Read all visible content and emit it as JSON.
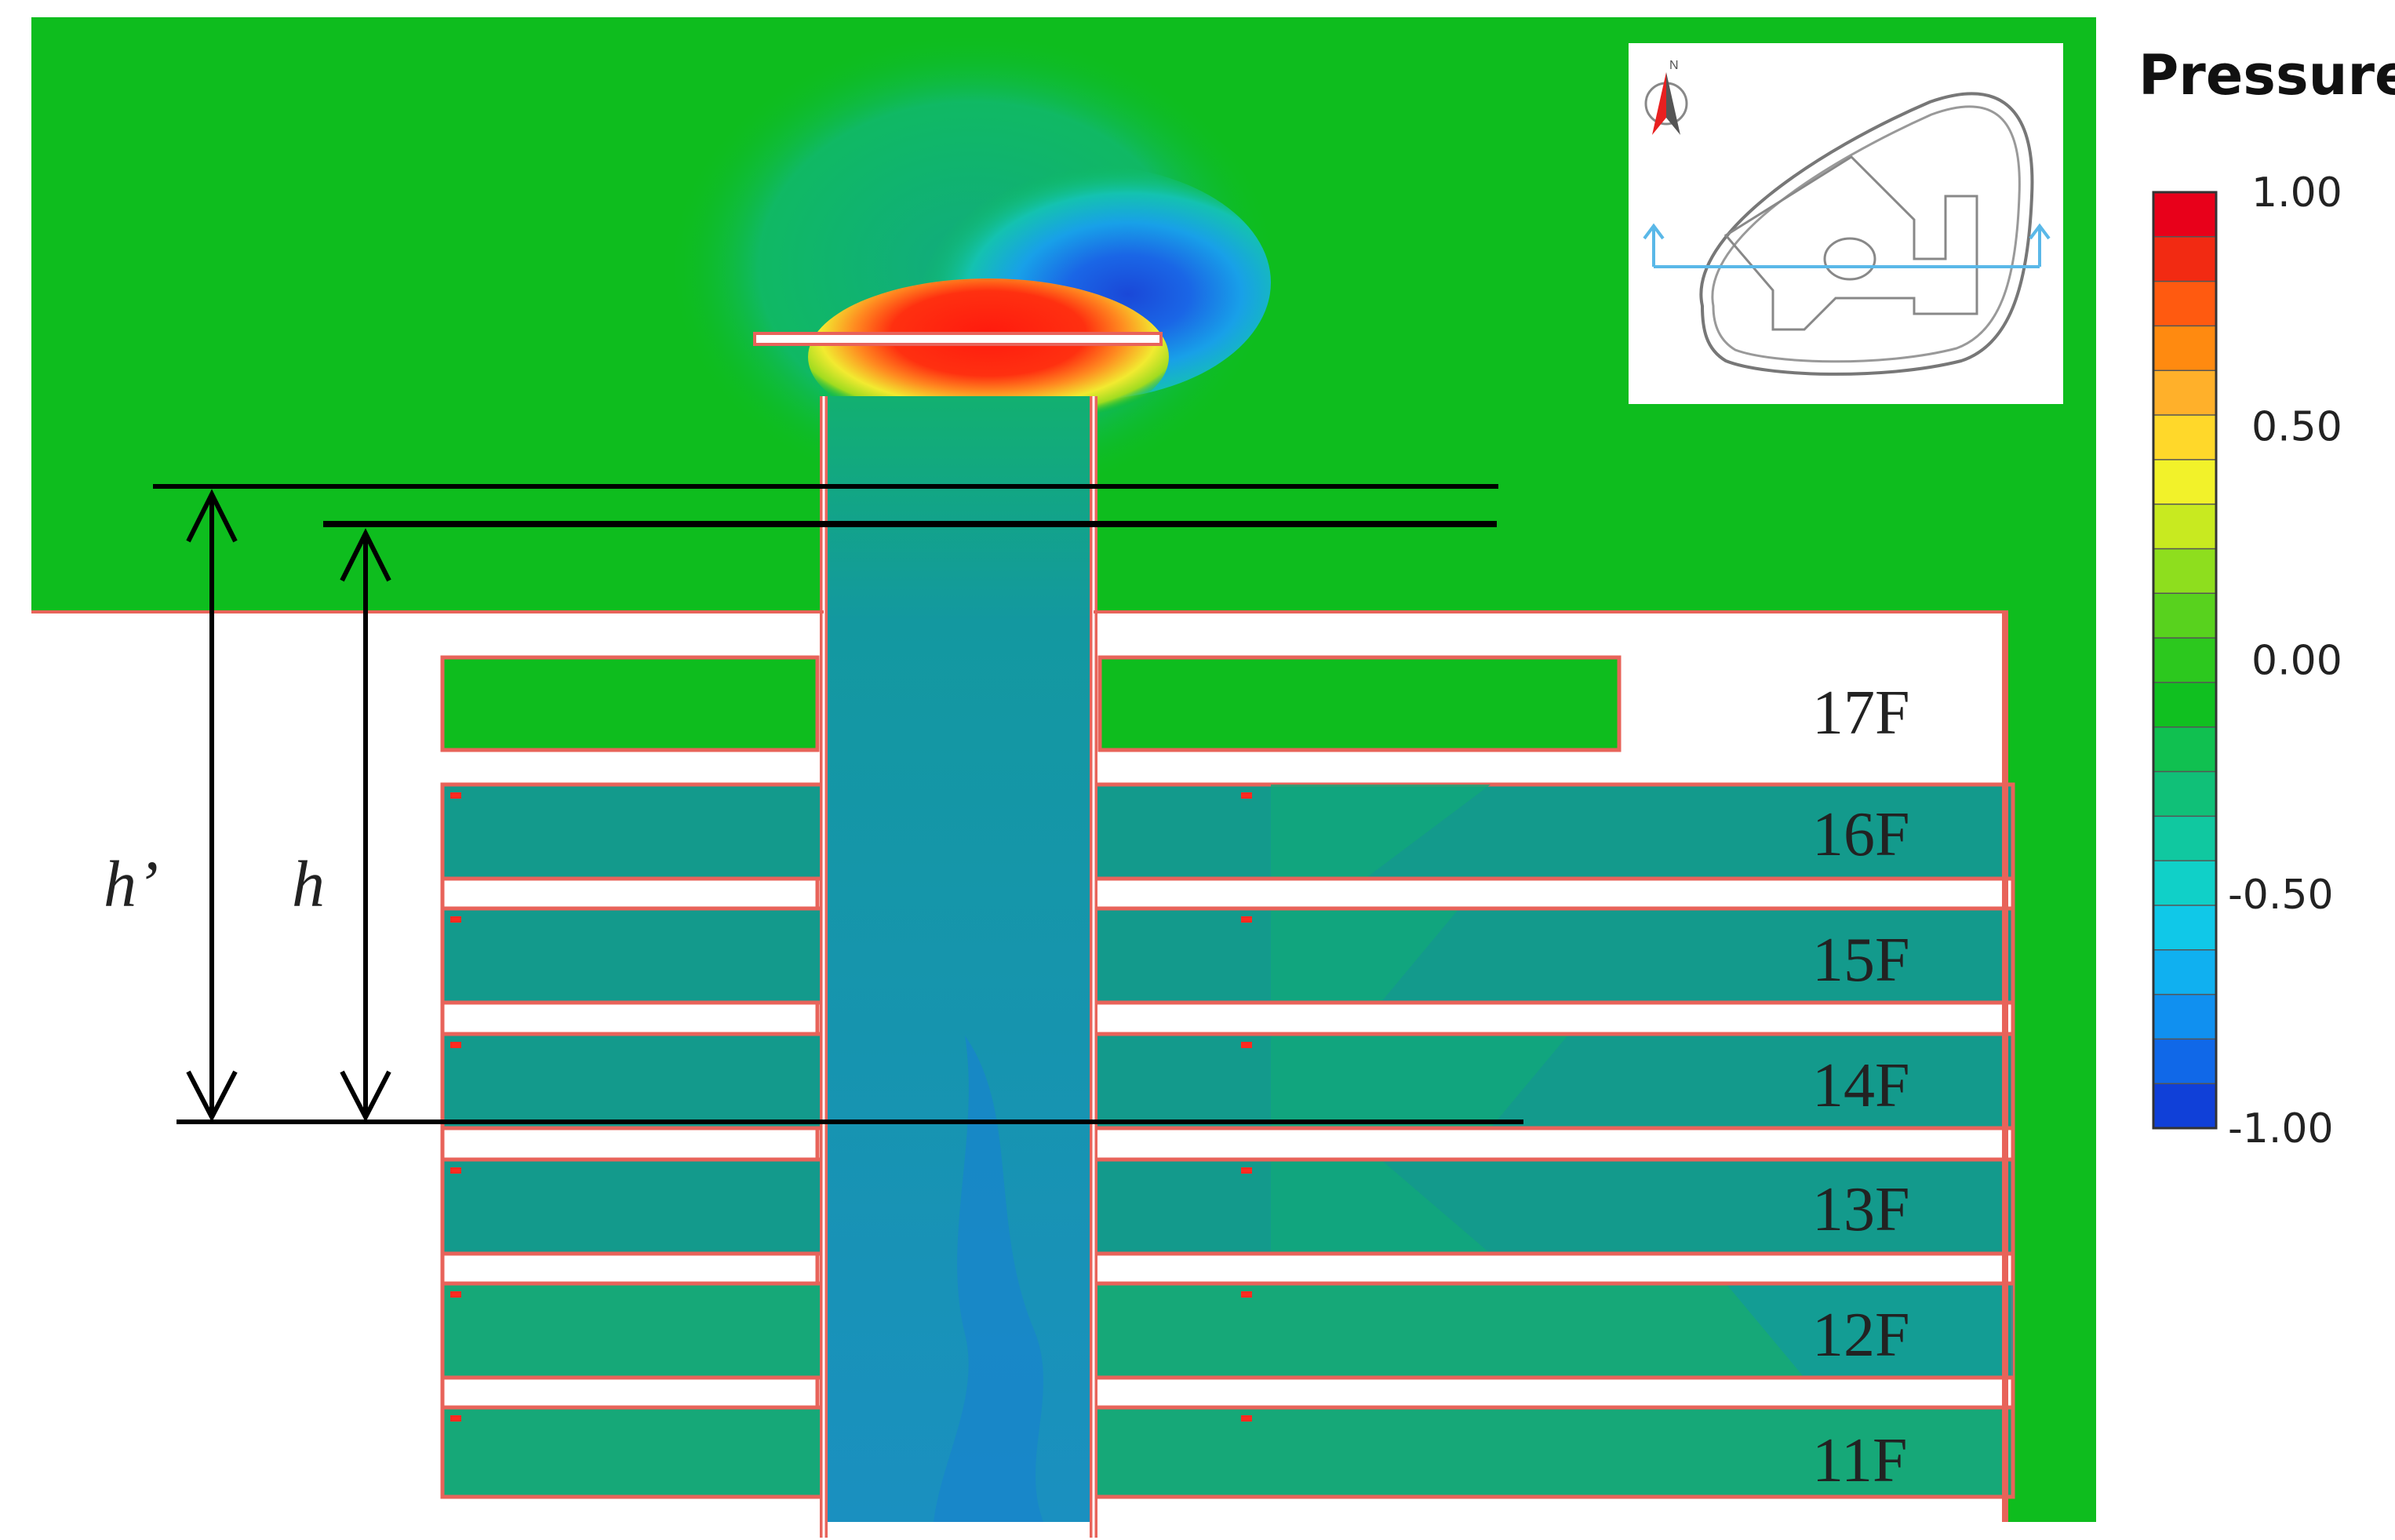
{
  "legend": {
    "title": "Pressure",
    "ticks": [
      "1.00",
      "0.50",
      "0.00",
      "-0.50",
      "-1.00"
    ],
    "colors": [
      "#e8001a",
      "#f22a12",
      "#ff5a10",
      "#ff8a10",
      "#ffb02a",
      "#ffd82a",
      "#f2f22a",
      "#c8ea20",
      "#8ede1e",
      "#58d21e",
      "#2cc81e",
      "#10c020",
      "#10c050",
      "#10c078",
      "#10c8a0",
      "#10d0c8",
      "#10c8e8",
      "#10b0f0",
      "#1090f0",
      "#1068e8",
      "#1040d8"
    ]
  },
  "floors": [
    "17F",
    "16F",
    "15F",
    "14F",
    "13F",
    "12F",
    "11F"
  ],
  "dimensions": {
    "h_prime": "h’",
    "h": "h"
  },
  "inset": {
    "compass_icon": "north-arrow-icon",
    "compass_letter": "N"
  },
  "field_colors": {
    "ambient": "#0ebd1e",
    "interior": "#139a8c",
    "shaft": "#1398a0",
    "wall": "#e8635a",
    "high_pressure": "#ff2010",
    "low_pressure": "#1a5adc"
  }
}
